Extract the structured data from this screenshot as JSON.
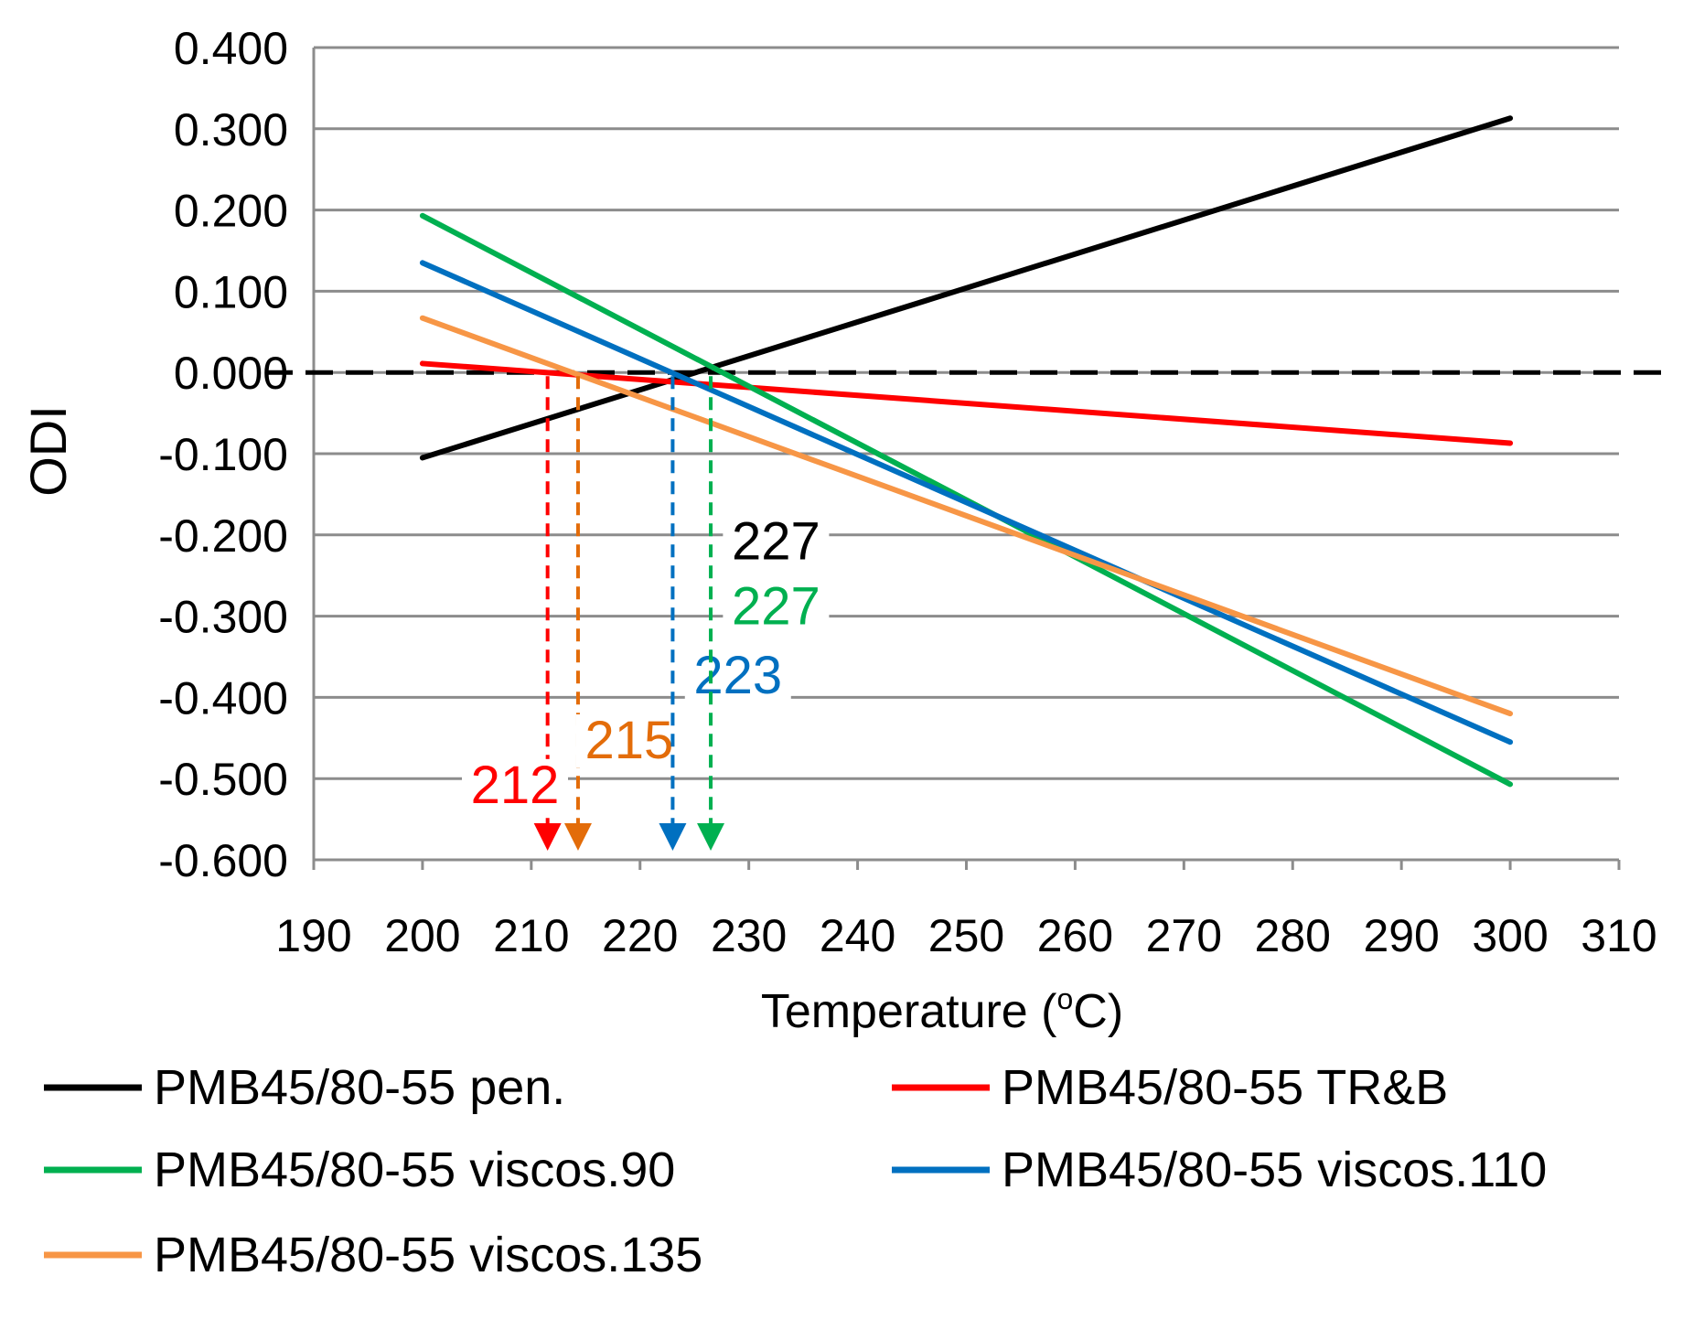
{
  "chart_data": {
    "type": "line",
    "title": "",
    "xlabel": "Temperature (",
    "xlabel_sup": "o",
    "xlabel_end": "C)",
    "ylabel": "ODI",
    "xlim": [
      190,
      310
    ],
    "ylim": [
      -0.6,
      0.4
    ],
    "x_ticks": [
      190,
      200,
      210,
      220,
      230,
      240,
      250,
      260,
      270,
      280,
      290,
      300,
      310
    ],
    "y_ticks": [
      0.4,
      0.3,
      0.2,
      0.1,
      0.0,
      -0.1,
      -0.2,
      -0.3,
      -0.4,
      -0.5,
      -0.6
    ],
    "x_tick_labels": [
      "190",
      "200",
      "210",
      "220",
      "230",
      "240",
      "250",
      "260",
      "270",
      "280",
      "290",
      "300",
      "310"
    ],
    "y_tick_labels": [
      "0.400",
      "0.300",
      "0.200",
      "0.100",
      "0.000",
      "-0.100",
      "-0.200",
      "-0.300",
      "-0.400",
      "-0.500",
      "-0.600"
    ],
    "grid": true,
    "zero_line": {
      "y": 0.0,
      "style": "dashed",
      "color": "#000000"
    },
    "series": [
      {
        "name": "PMB45/80-55 pen.",
        "color": "#000000",
        "x": [
          200,
          300
        ],
        "y": [
          -0.105,
          0.313
        ]
      },
      {
        "name": "PMB45/80-55 TR&B",
        "color": "#ff0000",
        "x": [
          200,
          300
        ],
        "y": [
          0.011,
          -0.087
        ]
      },
      {
        "name": "PMB45/80-55 viscos.90",
        "color": "#00b050",
        "x": [
          200,
          300
        ],
        "y": [
          0.193,
          -0.507
        ]
      },
      {
        "name": "PMB45/80-55 viscos.110",
        "color": "#0070c0",
        "x": [
          200,
          300
        ],
        "y": [
          0.135,
          -0.455
        ]
      },
      {
        "name": "PMB45/80-55 viscos.135",
        "color": "#f79646",
        "x": [
          200,
          300
        ],
        "y": [
          0.067,
          -0.42
        ]
      }
    ],
    "annotations": [
      {
        "label": "212",
        "x": 211.5,
        "color": "#ff0000",
        "label_pos": [
          208.5,
          -0.53
        ]
      },
      {
        "label": "215",
        "x": 214.3,
        "color": "#e36c09",
        "label_pos": [
          219,
          -0.475
        ]
      },
      {
        "label": "223",
        "x": 223,
        "color": "#0070c0",
        "label_pos": [
          229,
          -0.395
        ]
      },
      {
        "label": "227",
        "x": 226.5,
        "color": "#00b050",
        "label_pos": [
          232.5,
          -0.31
        ]
      },
      {
        "label": "227",
        "x": 226.5,
        "color": "#000000",
        "label_pos": [
          232.5,
          -0.23
        ],
        "no_arrow": true
      }
    ],
    "legend": {
      "placement": "bottom",
      "columns": 2
    }
  }
}
